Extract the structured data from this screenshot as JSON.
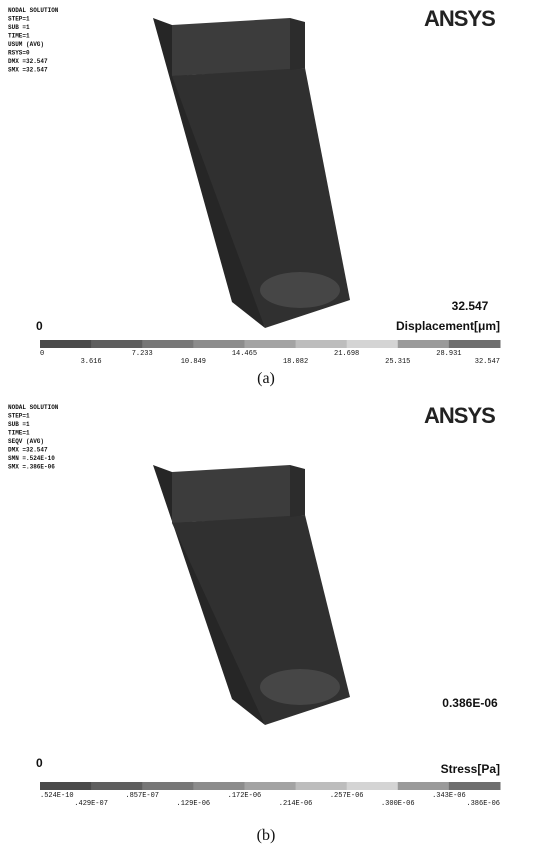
{
  "panels": [
    {
      "info": [
        "NODAL SOLUTION",
        "STEP=1",
        "SUB =1",
        "TIME=1",
        "USUM     (AVG)",
        "RSYS=0",
        "DMX =32.547",
        "SMX =32.547"
      ],
      "logo": "ANSYS",
      "max_label": "32.547",
      "quantity": "Displacement[μm]",
      "zero_label": "0",
      "legend_ticks": [
        "0",
        "3.616",
        "7.233",
        "10.849",
        "14.465",
        "18.082",
        "21.698",
        "25.315",
        "28.931",
        "32.547"
      ],
      "caption": "(a)"
    },
    {
      "info": [
        "NODAL SOLUTION",
        "STEP=1",
        "SUB =1",
        "TIME=1",
        "SEQV     (AVG)",
        "DMX =32.547",
        "SMN =.524E-10",
        "SMX =.386E-06"
      ],
      "logo": "ANSYS",
      "max_label": "0.386E-06",
      "quantity": "Stress[Pa]",
      "zero_label": "0",
      "legend_ticks": [
        ".524E-10",
        ".429E-07",
        ".857E-07",
        ".129E-06",
        ".172E-06",
        ".214E-06",
        ".257E-06",
        ".300E-06",
        ".343E-06",
        ".386E-06"
      ],
      "caption": "(b)"
    }
  ]
}
